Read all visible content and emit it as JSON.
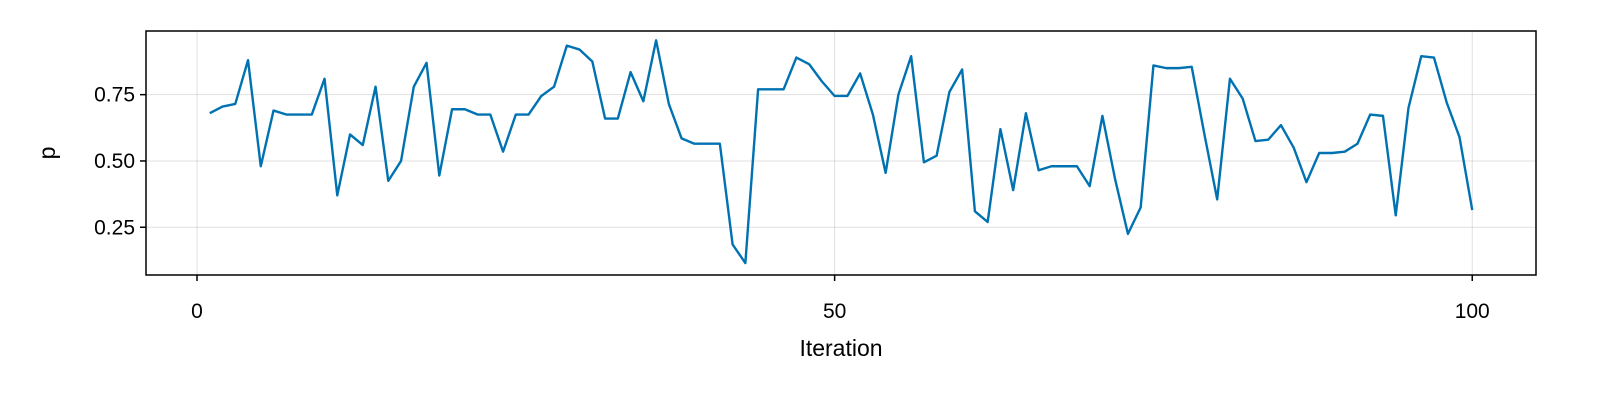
{
  "chart_data": {
    "type": "line",
    "title": "",
    "xlabel": "Iteration",
    "ylabel": "p",
    "xlim": [
      -4,
      105
    ],
    "ylim": [
      0.07,
      0.99
    ],
    "xticks": [
      0,
      50,
      100
    ],
    "xtick_labels": [
      "0",
      "50",
      "100"
    ],
    "yticks": [
      0.25,
      0.5,
      0.75
    ],
    "ytick_labels": [
      "0.25",
      "0.50",
      "0.75"
    ],
    "grid": true,
    "legend": "none",
    "series": [
      {
        "color": "#0072b2",
        "x": [
          1,
          2,
          3,
          4,
          5,
          6,
          7,
          8,
          9,
          10,
          11,
          12,
          13,
          14,
          15,
          16,
          17,
          18,
          19,
          20,
          21,
          22,
          23,
          24,
          25,
          26,
          27,
          28,
          29,
          30,
          31,
          32,
          33,
          34,
          35,
          36,
          37,
          38,
          39,
          40,
          41,
          42,
          43,
          44,
          45,
          46,
          47,
          48,
          49,
          50,
          51,
          52,
          53,
          54,
          55,
          56,
          57,
          58,
          59,
          60,
          61,
          62,
          63,
          64,
          65,
          66,
          67,
          68,
          69,
          70,
          71,
          72,
          73,
          74,
          75,
          76,
          77,
          78,
          79,
          80,
          81,
          82,
          83,
          84,
          85,
          86,
          87,
          88,
          89,
          90,
          91,
          92,
          93,
          94,
          95,
          96,
          97,
          98,
          99,
          100
        ],
        "values": [
          0.68,
          0.705,
          0.715,
          0.88,
          0.48,
          0.69,
          0.675,
          0.675,
          0.675,
          0.81,
          0.37,
          0.6,
          0.56,
          0.78,
          0.425,
          0.5,
          0.78,
          0.87,
          0.445,
          0.695,
          0.695,
          0.675,
          0.675,
          0.535,
          0.675,
          0.675,
          0.745,
          0.78,
          0.935,
          0.92,
          0.875,
          0.66,
          0.66,
          0.835,
          0.725,
          0.955,
          0.715,
          0.585,
          0.565,
          0.565,
          0.565,
          0.185,
          0.115,
          0.77,
          0.77,
          0.77,
          0.89,
          0.865,
          0.8,
          0.745,
          0.745,
          0.83,
          0.675,
          0.455,
          0.75,
          0.895,
          0.495,
          0.52,
          0.76,
          0.845,
          0.31,
          0.27,
          0.62,
          0.39,
          0.68,
          0.465,
          0.48,
          0.48,
          0.48,
          0.405,
          0.67,
          0.43,
          0.225,
          0.325,
          0.86,
          0.85,
          0.85,
          0.855,
          0.6,
          0.355,
          0.81,
          0.735,
          0.575,
          0.58,
          0.635,
          0.55,
          0.42,
          0.53,
          0.53,
          0.535,
          0.565,
          0.675,
          0.67,
          0.295,
          0.7,
          0.895,
          0.89,
          0.72,
          0.59,
          0.315
        ]
      }
    ]
  }
}
